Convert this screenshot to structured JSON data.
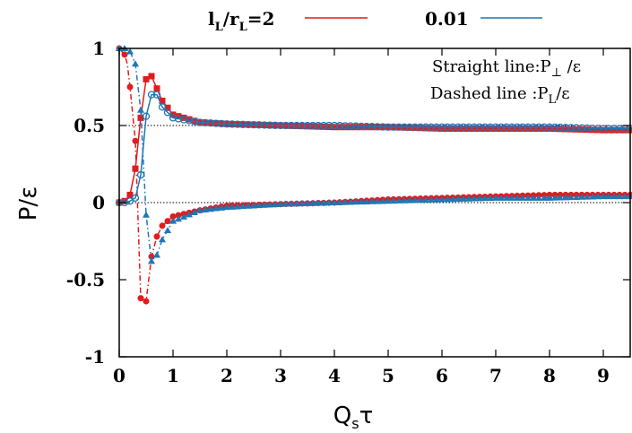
{
  "chart_data": {
    "type": "line",
    "xlabel": "Q_sτ",
    "ylabel": "P/ε",
    "xlim": [
      0,
      9.5
    ],
    "ylim": [
      -1,
      1
    ],
    "x_ticks": [
      "0",
      "1",
      "2",
      "3",
      "4",
      "5",
      "6",
      "7",
      "8",
      "9"
    ],
    "y_ticks": [
      "1",
      "0.5",
      "0",
      "-0.5",
      "-1"
    ],
    "legend": [
      {
        "main": "l",
        "sub1": "L",
        "mid": "/r",
        "sub2": "L",
        "end": "=2",
        "color": "#e41a1c"
      },
      {
        "label": "0.01",
        "color": "#1f77b4"
      }
    ],
    "annotations": {
      "straight_prefix": "Straight line:P",
      "straight_sub": "⊥",
      "straight_suffix": " /ε",
      "dashed_prefix": "Dashed line  :P",
      "dashed_sub": "L",
      "dashed_suffix": "/ε"
    },
    "reference_lines": [
      0.5,
      0
    ],
    "series": [
      {
        "name": "l_L/r_L=2 P⊥/ε",
        "color": "#e41a1c",
        "marker": "square",
        "dash": "solid",
        "x": [
          0,
          0.1,
          0.2,
          0.3,
          0.4,
          0.5,
          0.6,
          0.8,
          1.0,
          1.5,
          2,
          3,
          4,
          5,
          6,
          7,
          8,
          9,
          9.5
        ],
        "y": [
          0,
          0.01,
          0.05,
          0.22,
          0.55,
          0.8,
          0.82,
          0.66,
          0.57,
          0.52,
          0.51,
          0.5,
          0.49,
          0.49,
          0.48,
          0.48,
          0.48,
          0.47,
          0.47
        ]
      },
      {
        "name": "l_L/r_L=2 PL/ε",
        "color": "#e41a1c",
        "marker": "circle",
        "dash": "dashdot",
        "x": [
          0,
          0.1,
          0.15,
          0.2,
          0.3,
          0.4,
          0.5,
          0.6,
          0.7,
          0.8,
          1.0,
          1.5,
          2,
          3,
          4,
          5,
          6,
          7,
          8,
          9,
          9.5
        ],
        "y": [
          1,
          0.96,
          0.9,
          0.75,
          0.4,
          -0.62,
          -0.64,
          -0.35,
          -0.22,
          -0.15,
          -0.09,
          -0.05,
          -0.02,
          -0.01,
          0.0,
          0.02,
          0.03,
          0.04,
          0.05,
          0.05,
          0.05
        ]
      },
      {
        "name": "0.01 P⊥/ε",
        "color": "#1f77b4",
        "marker": "circle-open",
        "dash": "solid",
        "x": [
          0,
          0.1,
          0.2,
          0.3,
          0.4,
          0.5,
          0.6,
          0.7,
          0.8,
          1.0,
          1.5,
          2,
          3,
          4,
          5,
          6,
          7,
          8,
          9,
          9.5
        ],
        "y": [
          0,
          0,
          0.01,
          0.03,
          0.18,
          0.56,
          0.7,
          0.7,
          0.62,
          0.55,
          0.52,
          0.51,
          0.5,
          0.5,
          0.49,
          0.49,
          0.49,
          0.49,
          0.48,
          0.48
        ]
      },
      {
        "name": "0.01 PL/ε",
        "color": "#1f77b4",
        "marker": "triangle",
        "dash": "dashdot",
        "x": [
          0,
          0.1,
          0.2,
          0.3,
          0.4,
          0.5,
          0.6,
          0.7,
          0.8,
          1.0,
          1.5,
          2,
          3,
          4,
          5,
          6,
          7,
          8,
          9,
          9.5
        ],
        "y": [
          1,
          1,
          0.98,
          0.9,
          0.6,
          -0.08,
          -0.38,
          -0.34,
          -0.24,
          -0.12,
          -0.05,
          -0.03,
          -0.01,
          0.0,
          0.01,
          0.02,
          0.03,
          0.03,
          0.04,
          0.04
        ]
      }
    ]
  }
}
